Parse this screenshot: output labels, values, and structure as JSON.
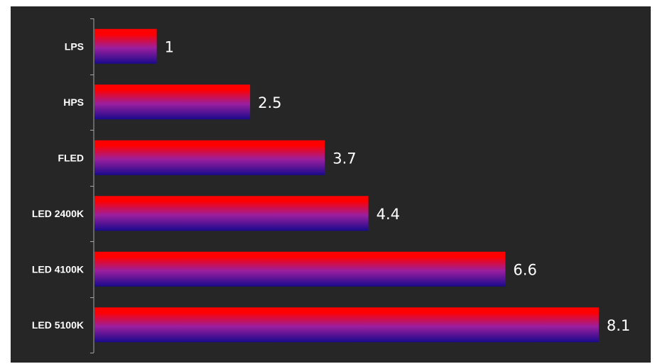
{
  "chart_data": {
    "type": "bar",
    "orientation": "horizontal",
    "categories": [
      "LPS",
      "HPS",
      "FLED",
      "LED 2400K",
      "LED 4100K",
      "LED 5100K"
    ],
    "values": [
      1,
      2.5,
      3.7,
      4.4,
      6.6,
      8.1
    ],
    "value_labels": [
      "1",
      "2.5",
      "3.7",
      "4.4",
      "6.6",
      "8.1"
    ],
    "title": "",
    "xlabel": "",
    "ylabel": "",
    "xlim": [
      0,
      8.9
    ],
    "grid": false,
    "legend": "none"
  },
  "colors": {
    "background": "#262626",
    "axis": "#a6a6a6",
    "bar_top": "#ff0000",
    "bar_mid": "#9b1f9f",
    "bar_bottom": "#1a0a8c",
    "text": "#ffffff"
  }
}
